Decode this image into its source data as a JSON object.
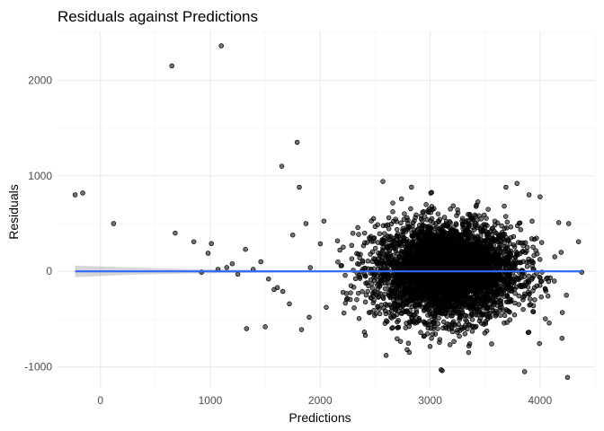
{
  "chart_data": {
    "type": "scatter",
    "title": "Residuals against Predictions",
    "xlabel": "Predictions",
    "ylabel": "Residuals",
    "xlim": [
      -390,
      4500
    ],
    "ylim": [
      -1220,
      2520
    ],
    "x_ticks": [
      0,
      1000,
      2000,
      3000,
      4000
    ],
    "y_ticks": [
      -1000,
      0,
      1000,
      2000
    ],
    "grid": true,
    "legend": "none",
    "colors": {
      "points": "#000000",
      "fit_line": "#3366ff",
      "ci_band": "#999999"
    },
    "outliers": [
      {
        "x": 1100,
        "y": 2360
      },
      {
        "x": 650,
        "y": 2150
      },
      {
        "x": 1790,
        "y": 1350
      },
      {
        "x": 1650,
        "y": 1100
      },
      {
        "x": 1810,
        "y": 880
      },
      {
        "x": -230,
        "y": 800
      },
      {
        "x": -160,
        "y": 820
      },
      {
        "x": 120,
        "y": 500
      },
      {
        "x": 680,
        "y": 400
      },
      {
        "x": 850,
        "y": 310
      },
      {
        "x": 1010,
        "y": 290
      },
      {
        "x": 980,
        "y": 190
      },
      {
        "x": 1320,
        "y": 230
      },
      {
        "x": 1200,
        "y": 80
      },
      {
        "x": 1150,
        "y": 40
      },
      {
        "x": 1070,
        "y": 20
      },
      {
        "x": 1250,
        "y": -30
      },
      {
        "x": 920,
        "y": -10
      },
      {
        "x": 1390,
        "y": 20
      },
      {
        "x": 1460,
        "y": 100
      },
      {
        "x": 1530,
        "y": -80
      },
      {
        "x": 1580,
        "y": -190
      },
      {
        "x": 1610,
        "y": -170
      },
      {
        "x": 1660,
        "y": -210
      },
      {
        "x": 1720,
        "y": -340
      },
      {
        "x": 1750,
        "y": 380
      },
      {
        "x": 1870,
        "y": 500
      },
      {
        "x": 1330,
        "y": -600
      },
      {
        "x": 1500,
        "y": -580
      },
      {
        "x": 1830,
        "y": -610
      },
      {
        "x": 1900,
        "y": -480
      },
      {
        "x": 2570,
        "y": 940
      },
      {
        "x": 2830,
        "y": 880
      },
      {
        "x": 3690,
        "y": 880
      },
      {
        "x": 3790,
        "y": 920
      },
      {
        "x": 3900,
        "y": 800
      },
      {
        "x": 4000,
        "y": 780
      },
      {
        "x": 4170,
        "y": 510
      },
      {
        "x": 4260,
        "y": 500
      },
      {
        "x": 4350,
        "y": 310
      },
      {
        "x": 4380,
        "y": -10
      },
      {
        "x": 4200,
        "y": -700
      },
      {
        "x": 3860,
        "y": -1050
      },
      {
        "x": 4250,
        "y": -1110
      },
      {
        "x": 3100,
        "y": -1030
      },
      {
        "x": 3110,
        "y": -1040
      },
      {
        "x": 3350,
        "y": -850
      },
      {
        "x": 3560,
        "y": -760
      },
      {
        "x": 2790,
        "y": -820
      },
      {
        "x": 2600,
        "y": -880
      }
    ],
    "bulk_cloud": {
      "description_count": 4200,
      "center_x": 3150,
      "sd_x": 330,
      "center_y": 0,
      "sd_y": 250,
      "x_range": [
        1850,
        4350
      ],
      "y_range": [
        -900,
        860
      ]
    },
    "fit_line": {
      "x": [
        -230,
        4380
      ],
      "y": [
        0,
        0
      ]
    },
    "ci_band": [
      {
        "x": -230,
        "lo": -60,
        "hi": 60
      },
      {
        "x": 300,
        "lo": -35,
        "hi": 40
      },
      {
        "x": 800,
        "lo": -22,
        "hi": 24
      },
      {
        "x": 1500,
        "lo": -14,
        "hi": 14
      },
      {
        "x": 2500,
        "lo": -8,
        "hi": 8
      },
      {
        "x": 3200,
        "lo": -5,
        "hi": 5
      },
      {
        "x": 4000,
        "lo": -8,
        "hi": 8
      },
      {
        "x": 4380,
        "lo": -14,
        "hi": 14
      }
    ]
  }
}
